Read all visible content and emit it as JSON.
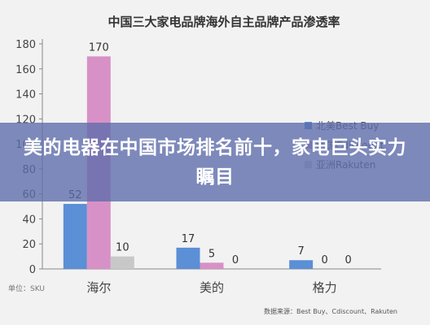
{
  "chart_data": {
    "type": "bar",
    "title": "中国三大家电品牌海外自主品牌产品渗透率",
    "categories": [
      "海尔",
      "美的",
      "格力"
    ],
    "series": [
      {
        "name": "北美Best Buy",
        "values": [
          52,
          17,
          7
        ],
        "color": "#5b8fd6"
      },
      {
        "name": "法国Cdiscount",
        "values": [
          170,
          5,
          0
        ],
        "color": "#d891c6"
      },
      {
        "name": "亚洲Rakuten",
        "values": [
          10,
          0,
          0
        ],
        "color": "#c8c8c8"
      }
    ],
    "legend_labels": [
      "北美Best Buy",
      "法国Cdiscount",
      "亚洲Rakuten"
    ],
    "ylim": [
      0,
      180
    ],
    "yticks": [
      0,
      20,
      40,
      60,
      80,
      100,
      120,
      140,
      160,
      180
    ],
    "grid": false,
    "legend_position": "right",
    "unit_label": "单位：SKU",
    "source": "数据来源：Best Buy、Cdiscount、Rakuten"
  },
  "banner": {
    "text": "美的电器在中国市场排名前十，家电巨头实力瞩目"
  }
}
